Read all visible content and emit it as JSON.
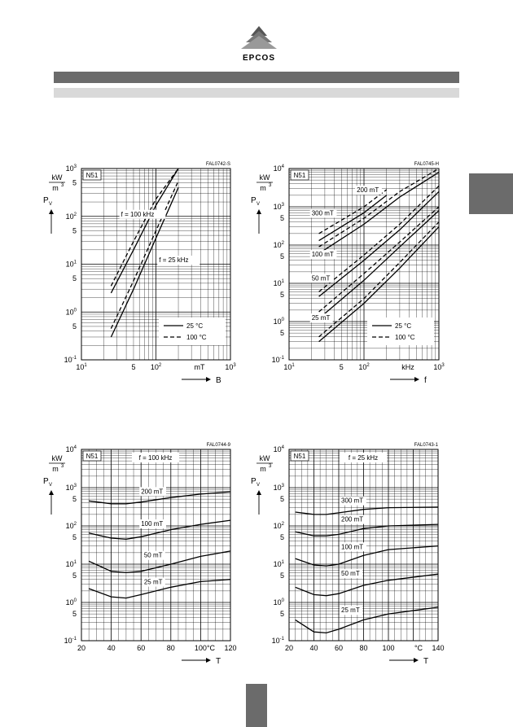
{
  "brand": {
    "name": "EPCOS",
    "logo": "epcos-logo"
  },
  "charts": [
    {
      "type": "line",
      "xscale": "log",
      "yscale": "log",
      "id_code": "FAL0742-S",
      "material": "N51",
      "xlim": [
        10,
        1000
      ],
      "ylim": [
        0.1,
        1000
      ],
      "x_ticks": [
        {
          "v": 10,
          "b": "10",
          "e": "1"
        },
        {
          "v": 50,
          "b": "5",
          "e": ""
        },
        {
          "v": 100,
          "b": "10",
          "e": "2"
        },
        {
          "v": 1000,
          "b": "10",
          "e": "3"
        }
      ],
      "x_unit": "mT",
      "x_symbol": "B",
      "y_ticks": [
        {
          "v": 0.1,
          "b": "10",
          "e": "-1"
        },
        {
          "v": 0.5,
          "b": "5",
          "e": ""
        },
        {
          "v": 1,
          "b": "10",
          "e": "0"
        },
        {
          "v": 5,
          "b": "5",
          "e": ""
        },
        {
          "v": 10,
          "b": "10",
          "e": "1"
        },
        {
          "v": 50,
          "b": "5",
          "e": ""
        },
        {
          "v": 100,
          "b": "10",
          "e": "2"
        },
        {
          "v": 500,
          "b": "5",
          "e": ""
        },
        {
          "v": 1000,
          "b": "10",
          "e": "3"
        }
      ],
      "y_unit_top": "kW",
      "y_unit_bottom": "m",
      "y_unit_exp": "3",
      "y_symbol": "P",
      "y_symbol_sub": "V",
      "legend": [
        {
          "label": "25 °C",
          "dash": false
        },
        {
          "label": "100 °C",
          "dash": true
        }
      ],
      "annotations": [
        {
          "text": "f = 100 kHz",
          "x": 34,
          "y": 100
        },
        {
          "text": "f = 25 kHz",
          "x": 110,
          "y": 11
        }
      ],
      "series": [
        {
          "dash": false,
          "points": [
            [
              25,
              0.3
            ],
            [
              50,
              3
            ],
            [
              100,
              35
            ],
            [
              200,
              400
            ]
          ]
        },
        {
          "dash": true,
          "points": [
            [
              25,
              0.45
            ],
            [
              50,
              4.5
            ],
            [
              100,
              50
            ],
            [
              200,
              550
            ]
          ]
        },
        {
          "dash": false,
          "points": [
            [
              25,
              2.5
            ],
            [
              50,
              20
            ],
            [
              100,
              170
            ],
            [
              200,
              1000
            ]
          ]
        },
        {
          "dash": true,
          "points": [
            [
              25,
              3.5
            ],
            [
              50,
              30
            ],
            [
              100,
              230
            ],
            [
              200,
              1000
            ]
          ]
        }
      ]
    },
    {
      "type": "line",
      "xscale": "log",
      "yscale": "log",
      "id_code": "FAL0745-H",
      "material": "N51",
      "xlim": [
        10,
        1000
      ],
      "ylim": [
        0.1,
        10000
      ],
      "x_ticks": [
        {
          "v": 10,
          "b": "10",
          "e": "1"
        },
        {
          "v": 50,
          "b": "5",
          "e": ""
        },
        {
          "v": 100,
          "b": "10",
          "e": "2"
        },
        {
          "v": 1000,
          "b": "10",
          "e": "3"
        }
      ],
      "x_unit": "kHz",
      "x_symbol": "f",
      "y_ticks": [
        {
          "v": 0.1,
          "b": "10",
          "e": "-1"
        },
        {
          "v": 0.5,
          "b": "5",
          "e": ""
        },
        {
          "v": 1,
          "b": "10",
          "e": "0"
        },
        {
          "v": 5,
          "b": "5",
          "e": ""
        },
        {
          "v": 10,
          "b": "10",
          "e": "1"
        },
        {
          "v": 50,
          "b": "5",
          "e": ""
        },
        {
          "v": 100,
          "b": "10",
          "e": "2"
        },
        {
          "v": 500,
          "b": "5",
          "e": ""
        },
        {
          "v": 1000,
          "b": "10",
          "e": "3"
        },
        {
          "v": 10000,
          "b": "10",
          "e": "4"
        }
      ],
      "y_unit_top": "kW",
      "y_unit_bottom": "m",
      "y_unit_exp": "3",
      "y_symbol": "P",
      "y_symbol_sub": "V",
      "legend": [
        {
          "label": "25 °C",
          "dash": false
        },
        {
          "label": "100 °C",
          "dash": true
        }
      ],
      "annotations": [
        {
          "text": "200 mT",
          "x": 80,
          "y": 2400
        },
        {
          "text": "300 mT",
          "x": 20,
          "y": 600
        },
        {
          "text": "100 mT",
          "x": 20,
          "y": 50
        },
        {
          "text": "50 mT",
          "x": 20,
          "y": 12
        },
        {
          "text": "25 mT",
          "x": 20,
          "y": 1.1
        }
      ],
      "series": [
        {
          "dash": false,
          "points": [
            [
              25,
              0.3
            ],
            [
              100,
              3
            ],
            [
              300,
              25
            ],
            [
              1000,
              300
            ]
          ]
        },
        {
          "dash": true,
          "points": [
            [
              25,
              0.4
            ],
            [
              100,
              4
            ],
            [
              300,
              35
            ],
            [
              1000,
              400
            ]
          ]
        },
        {
          "dash": false,
          "points": [
            [
              25,
              1.2
            ],
            [
              100,
              12
            ],
            [
              300,
              90
            ],
            [
              1000,
              800
            ]
          ]
        },
        {
          "dash": true,
          "points": [
            [
              25,
              1.8
            ],
            [
              100,
              18
            ],
            [
              300,
              120
            ],
            [
              1000,
              1000
            ]
          ]
        },
        {
          "dash": false,
          "points": [
            [
              25,
              4.5
            ],
            [
              100,
              40
            ],
            [
              300,
              250
            ],
            [
              1000,
              2500
            ]
          ]
        },
        {
          "dash": true,
          "points": [
            [
              25,
              6
            ],
            [
              100,
              55
            ],
            [
              300,
              350
            ],
            [
              1000,
              3500
            ]
          ]
        },
        {
          "dash": false,
          "points": [
            [
              25,
              60
            ],
            [
              100,
              350
            ],
            [
              300,
              1800
            ],
            [
              1000,
              8000
            ]
          ]
        },
        {
          "dash": true,
          "points": [
            [
              25,
              90
            ],
            [
              100,
              500
            ],
            [
              300,
              2500
            ],
            [
              1000,
              10000
            ]
          ]
        },
        {
          "dash": false,
          "points": [
            [
              25,
              130
            ],
            [
              100,
              700
            ],
            [
              200,
              2000
            ]
          ]
        },
        {
          "dash": true,
          "points": [
            [
              25,
              200
            ],
            [
              100,
              1000
            ],
            [
              200,
              2800
            ]
          ]
        }
      ]
    },
    {
      "type": "line",
      "xscale": "linear",
      "yscale": "log",
      "id_code": "FAL0744-9",
      "material": "N51",
      "subtitle": "f = 100 kHz",
      "xlim": [
        20,
        120
      ],
      "ylim": [
        0.1,
        10000
      ],
      "x_ticks": [
        {
          "v": 20,
          "b": "20",
          "e": ""
        },
        {
          "v": 40,
          "b": "40",
          "e": ""
        },
        {
          "v": 60,
          "b": "60",
          "e": ""
        },
        {
          "v": 80,
          "b": "80",
          "e": ""
        },
        {
          "v": 100,
          "b": "100",
          "e": ""
        },
        {
          "v": 120,
          "b": "120",
          "e": ""
        }
      ],
      "x_unit": "°C",
      "x_symbol": "T",
      "y_ticks": [
        {
          "v": 0.1,
          "b": "10",
          "e": "-1"
        },
        {
          "v": 0.5,
          "b": "5",
          "e": ""
        },
        {
          "v": 1,
          "b": "10",
          "e": "0"
        },
        {
          "v": 5,
          "b": "5",
          "e": ""
        },
        {
          "v": 10,
          "b": "10",
          "e": "1"
        },
        {
          "v": 50,
          "b": "5",
          "e": ""
        },
        {
          "v": 100,
          "b": "10",
          "e": "2"
        },
        {
          "v": 500,
          "b": "5",
          "e": ""
        },
        {
          "v": 1000,
          "b": "10",
          "e": "3"
        },
        {
          "v": 10000,
          "b": "10",
          "e": "4"
        }
      ],
      "y_unit_top": "kW",
      "y_unit_bottom": "m",
      "y_unit_exp": "3",
      "y_symbol": "P",
      "y_symbol_sub": "V",
      "annotations": [
        {
          "text": "200 mT",
          "x": 60,
          "y": 700
        },
        {
          "text": "100 mT",
          "x": 60,
          "y": 100
        },
        {
          "text": "50 mT",
          "x": 62,
          "y": 15
        },
        {
          "text": "25 mT",
          "x": 62,
          "y": 3
        }
      ],
      "series": [
        {
          "dash": false,
          "points": [
            [
              25,
              2.3
            ],
            [
              40,
              1.4
            ],
            [
              50,
              1.3
            ],
            [
              60,
              1.6
            ],
            [
              80,
              2.5
            ],
            [
              100,
              3.5
            ],
            [
              120,
              4
            ]
          ]
        },
        {
          "dash": false,
          "points": [
            [
              25,
              12
            ],
            [
              40,
              6.5
            ],
            [
              50,
              6
            ],
            [
              60,
              6.5
            ],
            [
              80,
              10
            ],
            [
              100,
              16
            ],
            [
              120,
              22
            ]
          ]
        },
        {
          "dash": false,
          "points": [
            [
              25,
              65
            ],
            [
              40,
              48
            ],
            [
              50,
              45
            ],
            [
              60,
              52
            ],
            [
              80,
              80
            ],
            [
              100,
              110
            ],
            [
              120,
              140
            ]
          ]
        },
        {
          "dash": false,
          "points": [
            [
              25,
              450
            ],
            [
              40,
              380
            ],
            [
              50,
              380
            ],
            [
              60,
              420
            ],
            [
              80,
              550
            ],
            [
              100,
              680
            ],
            [
              120,
              780
            ]
          ]
        }
      ]
    },
    {
      "type": "line",
      "xscale": "linear",
      "yscale": "log",
      "id_code": "FAL0743-1",
      "material": "N51",
      "subtitle": "f = 25 kHz",
      "xlim": [
        20,
        140
      ],
      "ylim": [
        0.1,
        10000
      ],
      "x_ticks": [
        {
          "v": 20,
          "b": "20",
          "e": ""
        },
        {
          "v": 40,
          "b": "40",
          "e": ""
        },
        {
          "v": 60,
          "b": "60",
          "e": ""
        },
        {
          "v": 80,
          "b": "80",
          "e": ""
        },
        {
          "v": 100,
          "b": "100",
          "e": ""
        },
        {
          "v": 140,
          "b": "140",
          "e": ""
        }
      ],
      "x_unit": "°C",
      "x_symbol": "T",
      "y_ticks": [
        {
          "v": 0.1,
          "b": "10",
          "e": "-1"
        },
        {
          "v": 0.5,
          "b": "5",
          "e": ""
        },
        {
          "v": 1,
          "b": "10",
          "e": "0"
        },
        {
          "v": 5,
          "b": "5",
          "e": ""
        },
        {
          "v": 10,
          "b": "10",
          "e": "1"
        },
        {
          "v": 50,
          "b": "5",
          "e": ""
        },
        {
          "v": 100,
          "b": "10",
          "e": "2"
        },
        {
          "v": 500,
          "b": "5",
          "e": ""
        },
        {
          "v": 1000,
          "b": "10",
          "e": "3"
        },
        {
          "v": 10000,
          "b": "10",
          "e": "4"
        }
      ],
      "y_unit_top": "kW",
      "y_unit_bottom": "m",
      "y_unit_exp": "3",
      "y_symbol": "P",
      "y_symbol_sub": "V",
      "annotations": [
        {
          "text": "300 mT",
          "x": 62,
          "y": 400
        },
        {
          "text": "200 mT",
          "x": 62,
          "y": 130
        },
        {
          "text": "100 mT",
          "x": 62,
          "y": 25
        },
        {
          "text": "50 mT",
          "x": 62,
          "y": 5
        },
        {
          "text": "25 mT",
          "x": 62,
          "y": 0.55
        }
      ],
      "series": [
        {
          "dash": false,
          "points": [
            [
              25,
              0.35
            ],
            [
              40,
              0.17
            ],
            [
              50,
              0.16
            ],
            [
              60,
              0.2
            ],
            [
              80,
              0.35
            ],
            [
              100,
              0.5
            ],
            [
              140,
              0.75
            ]
          ]
        },
        {
          "dash": false,
          "points": [
            [
              25,
              2.5
            ],
            [
              40,
              1.6
            ],
            [
              50,
              1.5
            ],
            [
              60,
              1.7
            ],
            [
              80,
              2.8
            ],
            [
              100,
              3.8
            ],
            [
              140,
              5.5
            ]
          ]
        },
        {
          "dash": false,
          "points": [
            [
              25,
              14
            ],
            [
              40,
              9.5
            ],
            [
              50,
              9
            ],
            [
              60,
              10
            ],
            [
              80,
              17
            ],
            [
              100,
              24
            ],
            [
              140,
              30
            ]
          ]
        },
        {
          "dash": false,
          "points": [
            [
              25,
              70
            ],
            [
              40,
              55
            ],
            [
              50,
              55
            ],
            [
              60,
              60
            ],
            [
              80,
              85
            ],
            [
              100,
              100
            ],
            [
              140,
              110
            ]
          ]
        },
        {
          "dash": false,
          "points": [
            [
              25,
              230
            ],
            [
              40,
              200
            ],
            [
              50,
              200
            ],
            [
              60,
              220
            ],
            [
              80,
              270
            ],
            [
              100,
              300
            ],
            [
              140,
              310
            ]
          ]
        }
      ]
    }
  ]
}
